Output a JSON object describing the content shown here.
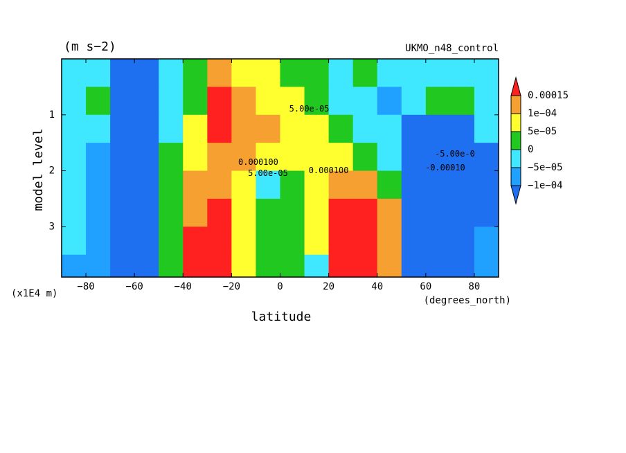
{
  "chart_data": {
    "type": "contour",
    "title": "(m s−2)",
    "subtitle": "UKMO_n48_control",
    "x_label": "latitude",
    "x_units": "(degrees_north)",
    "y_label": "model level",
    "y_units": "(x1E4 m)",
    "xlim": [
      -90,
      90
    ],
    "xticks": [
      {
        "value": -80,
        "label": "−80"
      },
      {
        "value": -60,
        "label": "−60"
      },
      {
        "value": -40,
        "label": "−40"
      },
      {
        "value": -20,
        "label": "−20"
      },
      0,
      20,
      40,
      60,
      80
    ],
    "ylim": [
      0,
      3.9
    ],
    "yticks": [
      1,
      2,
      3
    ],
    "y_inverted": true,
    "levels": [
      {
        "value": -0.0001,
        "label": "−1e−04"
      },
      {
        "value": -5e-05,
        "label": "−5e−05"
      },
      0,
      {
        "value": 5e-05,
        "label": "5e−05"
      },
      {
        "value": 0.0001,
        "label": "1e−04"
      },
      {
        "value": 0.00015,
        "label": "0.00015"
      }
    ],
    "colors": [
      "#1f70f0",
      "#20a0ff",
      "#40e8ff",
      "#20c820",
      "#ffff30",
      "#f5a030",
      "#ff2020"
    ],
    "x": [
      -85,
      -75,
      -65,
      -55,
      -45,
      -35,
      -25,
      -15,
      -5,
      5,
      15,
      25,
      35,
      45,
      55,
      65,
      75,
      85
    ],
    "y": [
      0.25,
      0.75,
      1.25,
      1.75,
      2.25,
      2.75,
      3.25,
      3.75
    ],
    "z": [
      [
        -2e-05,
        -2e-05,
        -0.00013,
        -0.00013,
        -2e-05,
        2e-05,
        0.00012,
        7e-05,
        7e-05,
        2e-05,
        2e-05,
        -2e-05,
        2e-05,
        -2e-05,
        -2e-05,
        -2e-05,
        -2e-05,
        -2e-05
      ],
      [
        -2e-05,
        2e-05,
        -0.00013,
        -0.00013,
        -2e-05,
        2e-05,
        0.00018,
        0.00012,
        7e-05,
        7e-05,
        2e-05,
        -2e-05,
        -2e-05,
        -7e-05,
        -2e-05,
        2e-05,
        2e-05,
        -2e-05
      ],
      [
        -2e-05,
        -2e-05,
        -0.00013,
        -0.00013,
        -2e-05,
        7e-05,
        0.00018,
        0.00012,
        0.00012,
        7e-05,
        7e-05,
        2e-05,
        -2e-05,
        -2e-05,
        -0.00013,
        -0.00013,
        -0.00013,
        -2e-05
      ],
      [
        -2e-05,
        -7e-05,
        -0.00013,
        -0.00013,
        2e-05,
        7e-05,
        0.00012,
        0.00012,
        7e-05,
        7e-05,
        7e-05,
        7e-05,
        2e-05,
        -2e-05,
        -0.00013,
        -0.00013,
        -0.00013,
        -0.00013
      ],
      [
        -2e-05,
        -7e-05,
        -0.00013,
        -0.00013,
        2e-05,
        0.00012,
        0.00012,
        7e-05,
        -2e-05,
        2e-05,
        7e-05,
        0.00012,
        0.00012,
        2e-05,
        -0.00013,
        -0.00013,
        -0.00013,
        -0.00013
      ],
      [
        -2e-05,
        -7e-05,
        -0.00013,
        -0.00013,
        2e-05,
        0.00012,
        0.00018,
        7e-05,
        2e-05,
        2e-05,
        7e-05,
        0.00018,
        0.00018,
        0.00012,
        -0.00013,
        -0.00013,
        -0.00013,
        -0.00013
      ],
      [
        -2e-05,
        -7e-05,
        -0.00013,
        -0.00013,
        2e-05,
        0.00018,
        0.00018,
        7e-05,
        2e-05,
        2e-05,
        7e-05,
        0.00018,
        0.00018,
        0.00012,
        -0.00013,
        -0.00013,
        -0.00013,
        -7e-05
      ],
      [
        -7e-05,
        -7e-05,
        -0.00013,
        -0.00013,
        2e-05,
        0.00018,
        0.00018,
        7e-05,
        2e-05,
        2e-05,
        -2e-05,
        0.00018,
        0.00018,
        0.00012,
        -0.00013,
        -0.00013,
        -0.00013,
        -7e-05
      ]
    ],
    "annotations": [
      {
        "text": "5.00e-05",
        "x": 12,
        "y": 0.9
      },
      {
        "text": "0.000100",
        "x": -9,
        "y": 1.85
      },
      {
        "text": "5.00e-05",
        "x": -5,
        "y": 2.05
      },
      {
        "text": "0.000100",
        "x": 20,
        "y": 2.0
      },
      {
        "text": "-5.00e-0",
        "x": 72,
        "y": 1.7
      },
      {
        "text": "-0.00010",
        "x": 68,
        "y": 1.95
      }
    ]
  }
}
